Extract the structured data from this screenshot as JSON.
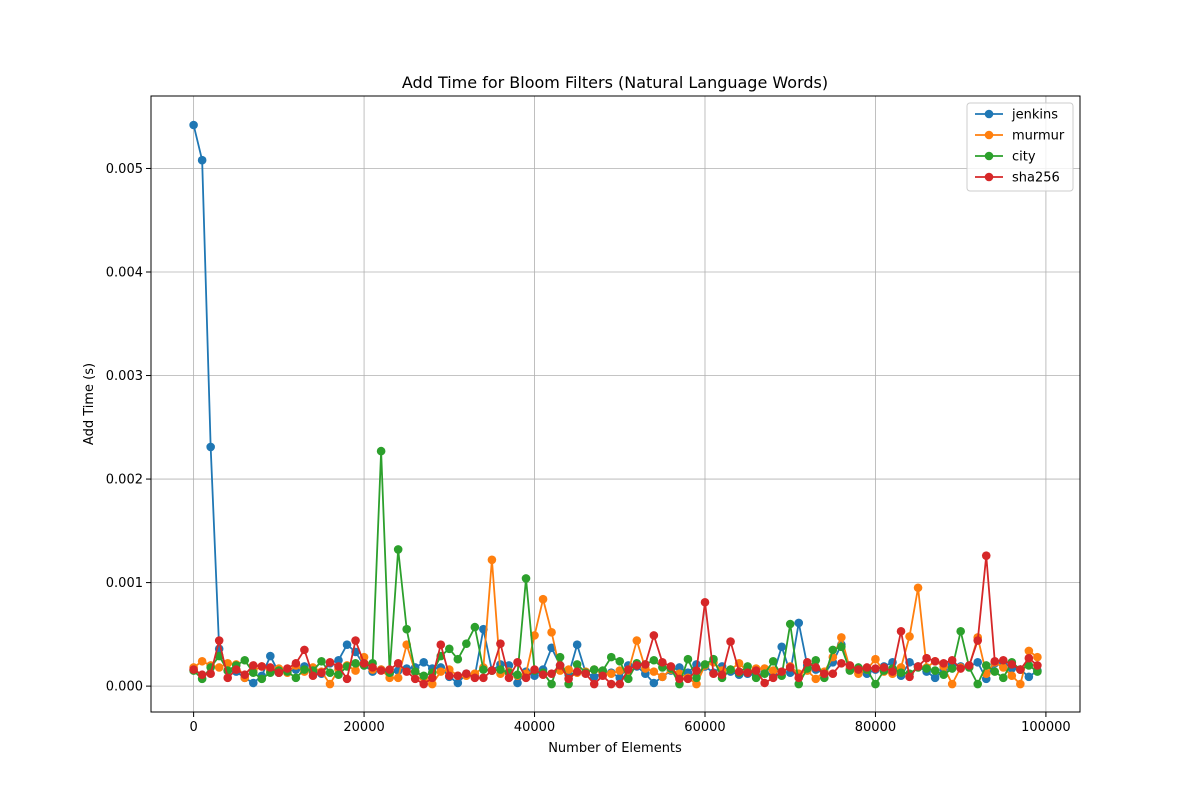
{
  "chart_data": {
    "type": "line",
    "title": "Add Time for Bloom Filters (Natural Language Words)",
    "xlabel": "Number of Elements",
    "ylabel": "Add Time (s)",
    "xlim": [
      -5000,
      104000
    ],
    "ylim": [
      -0.00025,
      0.0057
    ],
    "xticks": [
      0,
      20000,
      40000,
      60000,
      80000,
      100000
    ],
    "yticks": [
      0.0,
      0.001,
      0.002,
      0.003,
      0.004,
      0.005
    ],
    "ytick_labels": [
      "0.000",
      "0.001",
      "0.002",
      "0.003",
      "0.004",
      "0.005"
    ],
    "grid": true,
    "legend_position": "upper right",
    "x_start": 0,
    "x_step": 1000,
    "series": [
      {
        "name": "jenkins",
        "color": "#1f77b4",
        "values": [
          0.00542,
          0.00508,
          0.00231,
          0.00036,
          0.00015,
          0.00014,
          8e-05,
          3e-05,
          0.0001,
          0.00029,
          0.00013,
          0.00015,
          0.00016,
          0.00019,
          0.00014,
          0.00012,
          0.00022,
          0.00025,
          0.0004,
          0.00033,
          0.0002,
          0.00014,
          0.00016,
          0.00012,
          0.00015,
          0.00017,
          0.00018,
          0.00023,
          0.00017,
          0.00018,
          9e-05,
          3e-05,
          0.00012,
          0.0001,
          0.00055,
          0.00015,
          0.00021,
          0.0002,
          3e-05,
          0.00014,
          0.0001,
          0.00016,
          0.00037,
          0.0002,
          0.00011,
          0.0004,
          0.00013,
          9e-05,
          0.00013,
          0.00013,
          8e-05,
          0.0002,
          0.00019,
          0.00012,
          3e-05,
          9e-05,
          0.00015,
          0.00018,
          0.00013,
          0.00021,
          0.00019,
          0.00013,
          0.00019,
          0.00014,
          0.00011,
          0.00012,
          0.0001,
          0.00013,
          0.00011,
          0.00038,
          0.00013,
          0.00061,
          0.0002,
          0.00016,
          0.00012,
          0.00023,
          0.0004,
          0.00016,
          0.00015,
          0.00012,
          0.00016,
          0.00019,
          0.00023,
          0.0001,
          0.00023,
          0.00019,
          0.00014,
          8e-05,
          0.00016,
          0.00021,
          0.00019,
          0.00019,
          0.00023,
          7e-05,
          0.00022,
          0.00023,
          0.00017,
          0.00016,
          9e-05,
          0.00015
        ]
      },
      {
        "name": "murmur",
        "color": "#ff7f0e",
        "values": [
          0.00018,
          0.00024,
          0.0002,
          0.00018,
          0.00022,
          0.00021,
          8e-05,
          0.00015,
          0.00019,
          0.00015,
          0.00017,
          0.00013,
          0.0002,
          0.00014,
          0.00018,
          0.00014,
          2e-05,
          0.00016,
          0.0002,
          0.00015,
          0.00028,
          0.00016,
          0.00016,
          8e-05,
          8e-05,
          0.0004,
          0.00014,
          8e-05,
          2e-05,
          0.00014,
          0.00016,
          0.0001,
          0.0001,
          0.00012,
          0.00018,
          0.00122,
          0.00012,
          0.00014,
          0.0001,
          0.00012,
          0.00049,
          0.00084,
          0.00052,
          0.00015,
          0.00016,
          0.00013,
          0.00014,
          0.00016,
          0.00012,
          0.00012,
          0.00015,
          0.00014,
          0.00044,
          0.00017,
          0.00014,
          9e-05,
          0.00016,
          0.00012,
          8e-05,
          2e-05,
          0.0002,
          0.00023,
          0.00015,
          0.00016,
          0.00022,
          0.00014,
          0.00017,
          0.00017,
          0.00015,
          0.00013,
          0.00019,
          0.00012,
          0.00015,
          7e-05,
          0.00014,
          0.00028,
          0.00047,
          0.00017,
          0.00012,
          0.00016,
          0.00026,
          0.00014,
          0.00012,
          0.00018,
          0.00048,
          0.00095,
          0.00018,
          0.00024,
          0.00019,
          2e-05,
          0.00018,
          0.00019,
          0.00047,
          0.00012,
          0.00023,
          0.00018,
          0.0001,
          2e-05,
          0.00034,
          0.00028
        ]
      },
      {
        "name": "city",
        "color": "#2ca02c",
        "values": [
          0.00015,
          7e-05,
          0.00018,
          0.00029,
          0.00015,
          0.0002,
          0.00025,
          0.00013,
          7e-05,
          0.00013,
          0.00015,
          0.00014,
          8e-05,
          0.00016,
          0.00015,
          0.00024,
          0.00013,
          0.00011,
          0.00019,
          0.00022,
          0.0002,
          0.00022,
          0.00227,
          0.00013,
          0.00132,
          0.00055,
          0.00014,
          0.0001,
          0.00013,
          0.00029,
          0.00036,
          0.00026,
          0.00041,
          0.00057,
          0.00016,
          0.00015,
          0.00016,
          0.00013,
          0.00011,
          0.00104,
          0.00015,
          0.00013,
          2e-05,
          0.00028,
          2e-05,
          0.00021,
          0.00013,
          0.00016,
          0.00015,
          0.00028,
          0.00024,
          7e-05,
          0.00022,
          0.00021,
          0.00025,
          0.00018,
          0.00017,
          2e-05,
          0.00026,
          8e-05,
          0.00021,
          0.00026,
          8e-05,
          0.00016,
          0.00013,
          0.00019,
          8e-05,
          0.00012,
          0.00024,
          0.0001,
          0.0006,
          2e-05,
          0.00017,
          0.00025,
          8e-05,
          0.00035,
          0.00038,
          0.00015,
          0.00018,
          0.00016,
          2e-05,
          0.00015,
          0.00017,
          0.00013,
          0.00012,
          0.00018,
          0.00017,
          0.00015,
          0.00011,
          0.00017,
          0.00053,
          0.00018,
          2e-05,
          0.0002,
          0.00014,
          8e-05,
          0.00023,
          0.00016,
          0.0002,
          0.00014
        ]
      },
      {
        "name": "sha256",
        "color": "#d62728",
        "values": [
          0.00016,
          0.00011,
          0.00012,
          0.00044,
          8e-05,
          0.00016,
          0.00011,
          0.0002,
          0.00019,
          0.00018,
          0.00013,
          0.00017,
          0.00022,
          0.00035,
          0.0001,
          0.00013,
          0.00023,
          0.00019,
          7e-05,
          0.00044,
          0.00022,
          0.00018,
          0.00015,
          0.00016,
          0.00022,
          0.00014,
          7e-05,
          2e-05,
          8e-05,
          0.0004,
          0.0001,
          0.0001,
          0.00012,
          8e-05,
          8e-05,
          0.00015,
          0.00041,
          8e-05,
          0.00023,
          8e-05,
          0.00016,
          0.00011,
          0.00012,
          0.0002,
          7e-05,
          0.00014,
          0.00012,
          2e-05,
          0.0001,
          2e-05,
          2e-05,
          0.00016,
          0.0002,
          0.00021,
          0.00049,
          0.00023,
          0.00019,
          7e-05,
          7e-05,
          0.00015,
          0.00081,
          0.00012,
          0.00011,
          0.00043,
          0.00014,
          0.00013,
          0.00015,
          3e-05,
          8e-05,
          0.00014,
          0.00018,
          8e-05,
          0.00023,
          0.00018,
          0.00012,
          0.00012,
          0.00022,
          0.0002,
          0.00016,
          0.00018,
          0.00017,
          0.00018,
          0.00014,
          0.00053,
          9e-05,
          0.00019,
          0.00027,
          0.00024,
          0.00022,
          0.00025,
          0.00017,
          0.0002,
          0.00044,
          0.00126,
          0.00024,
          0.00025,
          0.00021,
          0.00016,
          0.00027,
          0.0002
        ]
      }
    ]
  }
}
